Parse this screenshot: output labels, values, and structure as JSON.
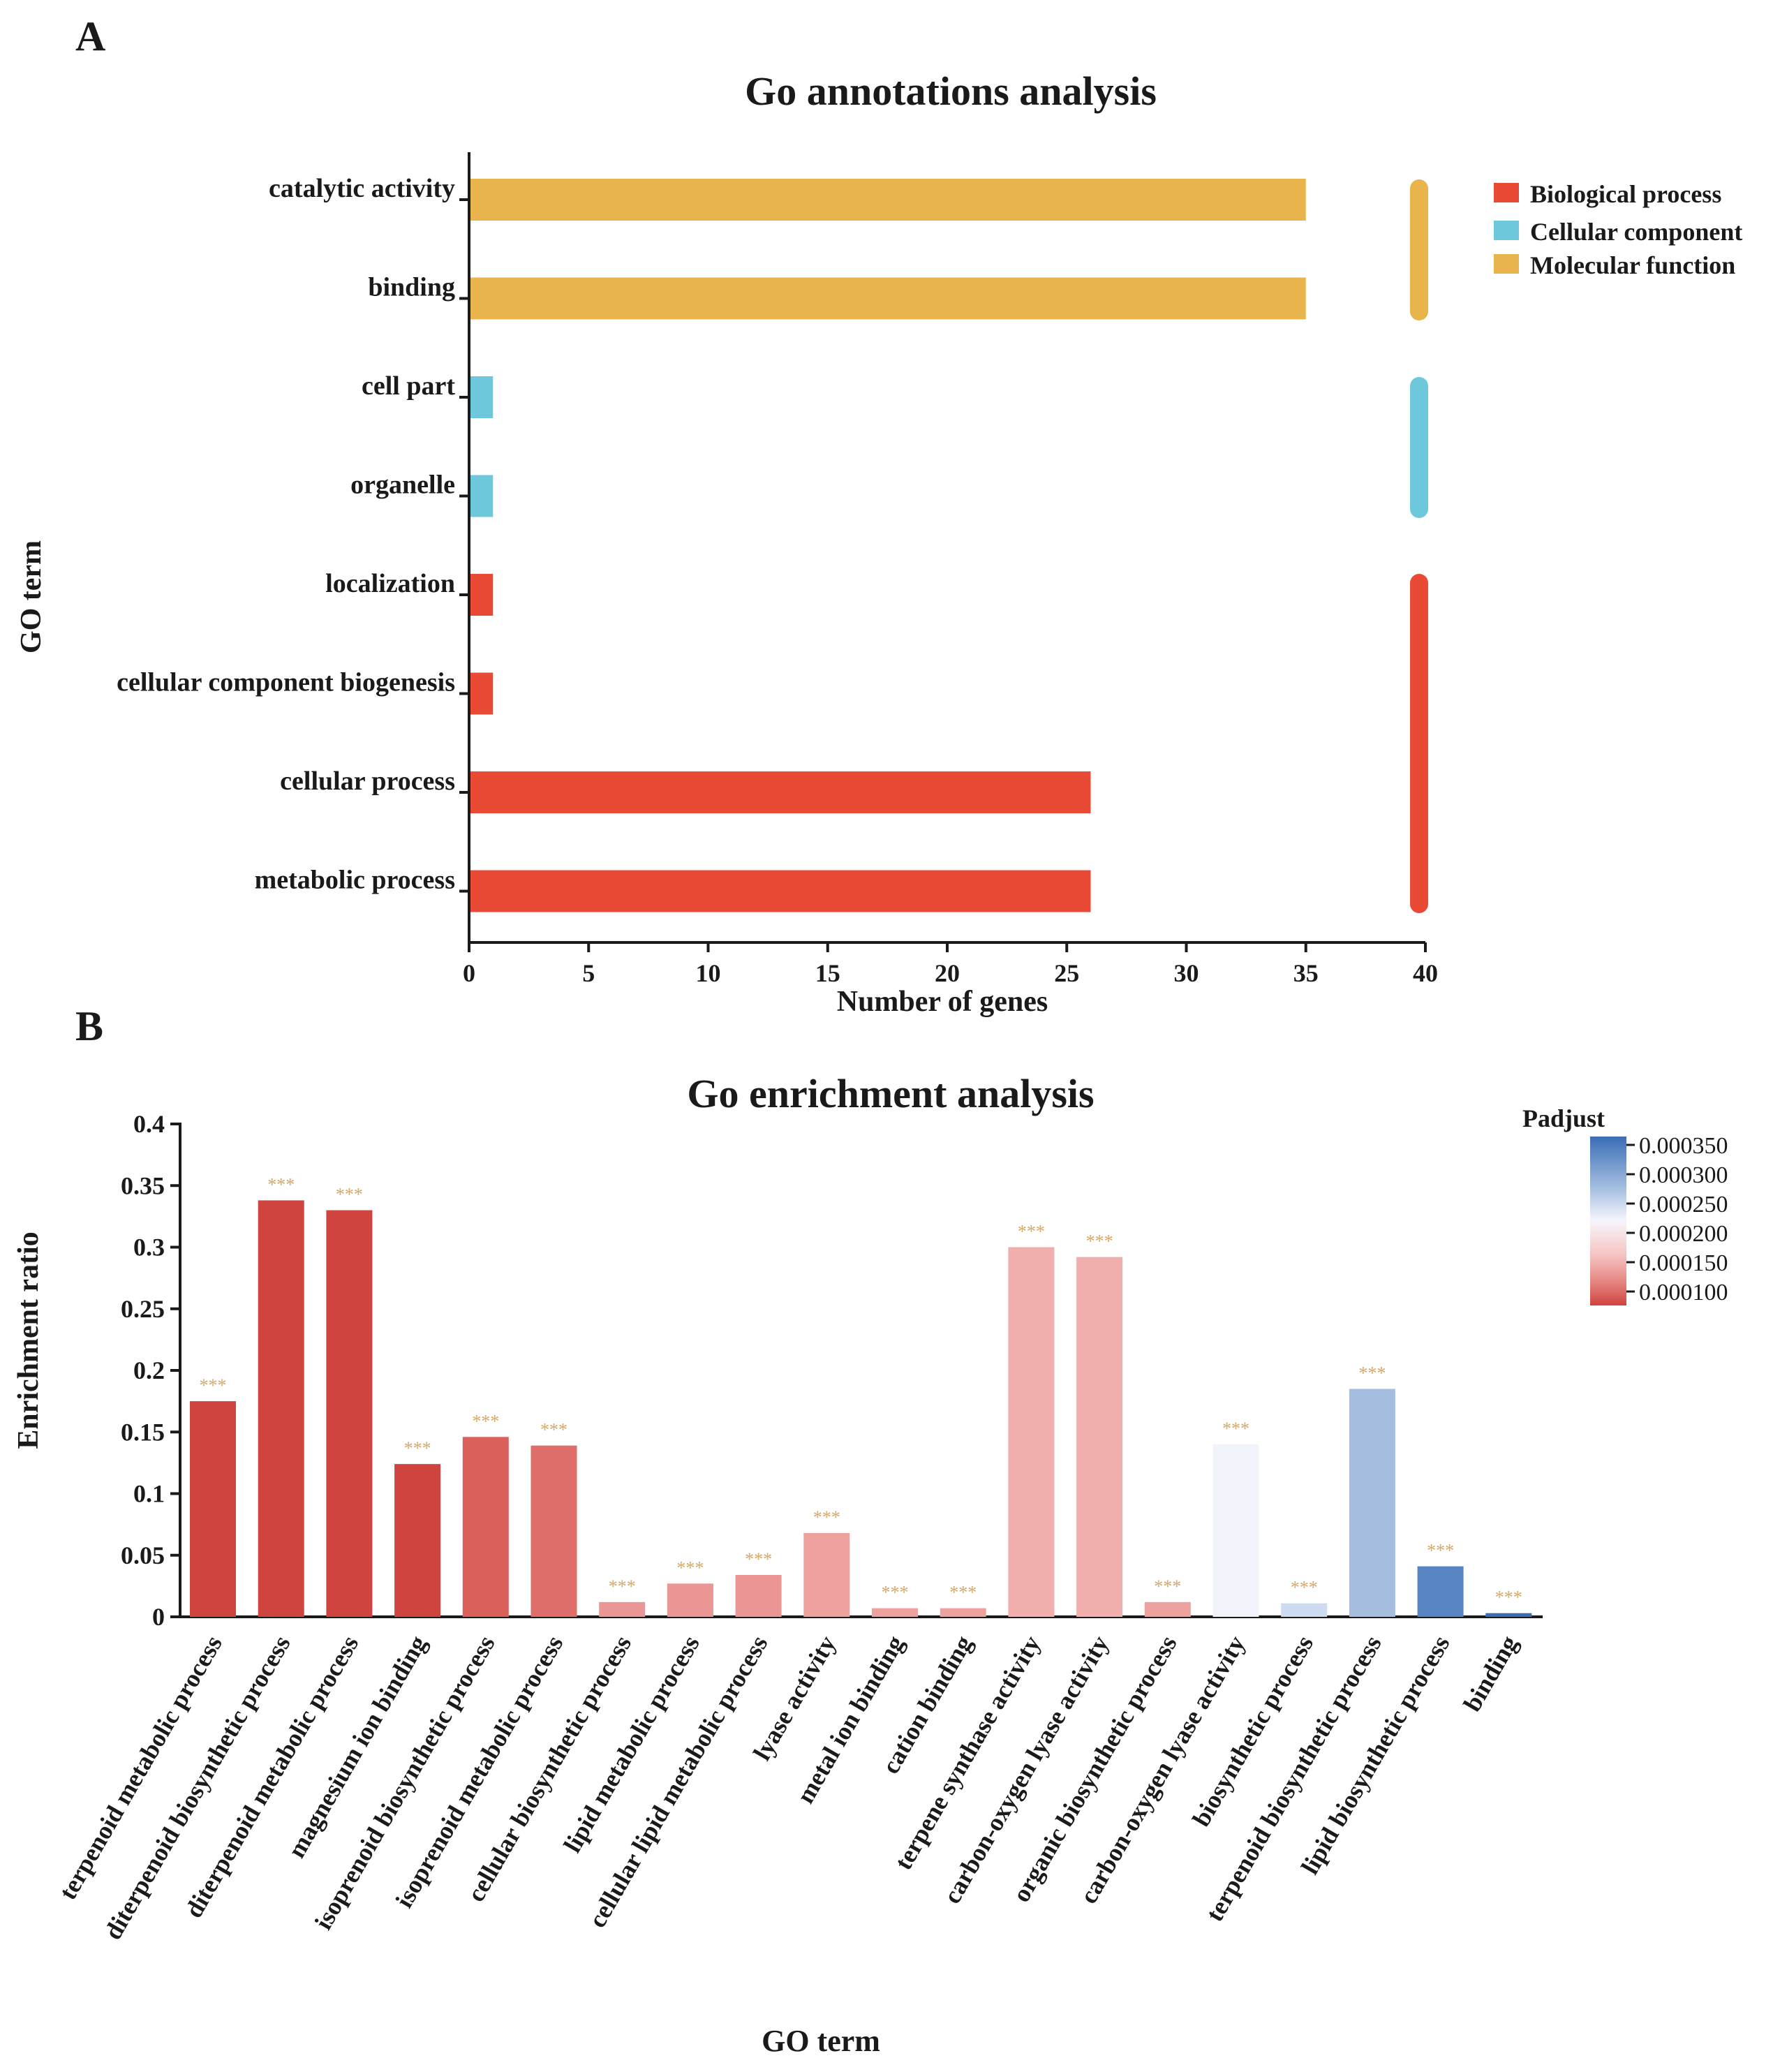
{
  "chart_data": [
    {
      "panel_label": "A",
      "type": "bar",
      "orientation": "horizontal",
      "title": "Go annotations analysis",
      "xlabel": "Number of genes",
      "ylabel": "GO term",
      "xlim": [
        0,
        40
      ],
      "xticks": [
        0,
        5,
        10,
        15,
        20,
        25,
        30,
        35,
        40
      ],
      "categories": [
        "catalytic activity",
        "binding",
        "cell part",
        "organelle",
        "localization",
        "cellular component biogenesis",
        "cellular process",
        "metabolic process"
      ],
      "values": [
        35,
        35,
        1,
        1,
        1,
        1,
        26,
        26
      ],
      "groups": [
        "Molecular function",
        "Molecular function",
        "Cellular component",
        "Cellular component",
        "Biological process",
        "Biological process",
        "Biological process",
        "Biological process"
      ],
      "legend": [
        {
          "name": "Biological process",
          "color": "#e84a35"
        },
        {
          "name": "Cellular component",
          "color": "#6dc8dc"
        },
        {
          "name": "Molecular function",
          "color": "#e9b44c"
        }
      ],
      "legend_position": "top-right"
    },
    {
      "panel_label": "B",
      "type": "bar",
      "orientation": "vertical",
      "title": "Go enrichment analysis",
      "xlabel": "GO term",
      "ylabel": "Enrichment ratio",
      "ylim": [
        0,
        0.4
      ],
      "yticks": [
        0,
        0.05,
        0.1,
        0.15,
        0.2,
        0.25,
        0.3,
        0.35,
        0.4
      ],
      "ytick_labels": [
        "0",
        "0.05",
        "0.1",
        "0.15",
        "0.2",
        "0.25",
        "0.3",
        "0.35",
        "0.4"
      ],
      "categories": [
        "terpenoid metabolic process",
        "diterpenoid biosynthetic process",
        "diterpenoid metabolic process",
        "magnesium ion binding",
        "isoprenoid biosynthetic process",
        "isoprenoid metabolic process",
        "cellular biosynthetic process",
        "lipid metabolic process",
        "cellular lipid metabolic process",
        "lyase activity",
        "metal ion binding",
        "cation binding",
        "terpene synthase activity",
        "carbon-oxygen lyase activity",
        "organic biosynthetic process",
        "carbon-oxygen lyase activity",
        "biosynthetic process",
        "terpenoid biosynthetic process",
        "lipid biosynthetic process",
        "binding"
      ],
      "values": [
        0.175,
        0.338,
        0.33,
        0.124,
        0.146,
        0.139,
        0.012,
        0.027,
        0.034,
        0.068,
        0.007,
        0.007,
        0.3,
        0.292,
        0.012,
        0.14,
        0.011,
        0.185,
        0.041,
        0.003
      ],
      "padjust": [
        9e-05,
        9e-05,
        9e-05,
        9e-05,
        0.00011,
        0.00012,
        0.00015,
        0.00015,
        0.00015,
        0.00016,
        0.00016,
        0.00016,
        0.00017,
        0.00017,
        0.00016,
        0.00024,
        0.00027,
        0.0003,
        0.00035,
        0.00036
      ],
      "significance": "***",
      "significance_color": "#d4a86a",
      "colorbar": {
        "title": "Padjust",
        "ticks": [
          "0.000350",
          "0.000300",
          "0.000250",
          "0.000200",
          "0.000150",
          "0.000100"
        ],
        "colors": [
          "#3a6db5",
          "#a3bde0",
          "#f6f6fb",
          "#f5c4c3",
          "#e68a87",
          "#d0443f"
        ]
      }
    }
  ]
}
